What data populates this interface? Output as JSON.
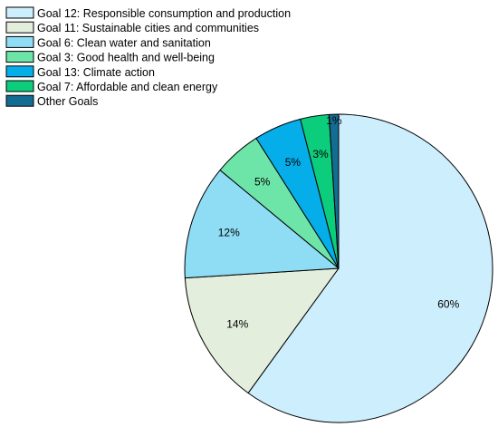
{
  "chart_data": {
    "type": "pie",
    "title": "",
    "legend_position": "top-left",
    "slices": [
      {
        "name": "Goal 12: Responsible consumption and production",
        "value": 60,
        "label": "60%",
        "color": "#cdeefd"
      },
      {
        "name": "Goal 11: Sustainable cities and communities",
        "value": 14,
        "label": "14%",
        "color": "#e3eedc"
      },
      {
        "name": "Goal 6: Clean water and sanitation",
        "value": 12,
        "label": "12%",
        "color": "#8fdcf5"
      },
      {
        "name": "Goal 3: Good health and well-being",
        "value": 5,
        "label": "5%",
        "color": "#6de4a8"
      },
      {
        "name": "Goal 13: Climate action",
        "value": 5,
        "label": "5%",
        "color": "#05aee9"
      },
      {
        "name": "Goal 7: Affordable and clean energy",
        "value": 3,
        "label": "3%",
        "color": "#0ccd7c"
      },
      {
        "name": "Other Goals",
        "value": 1,
        "label": "1%",
        "color": "#136d93"
      }
    ]
  }
}
